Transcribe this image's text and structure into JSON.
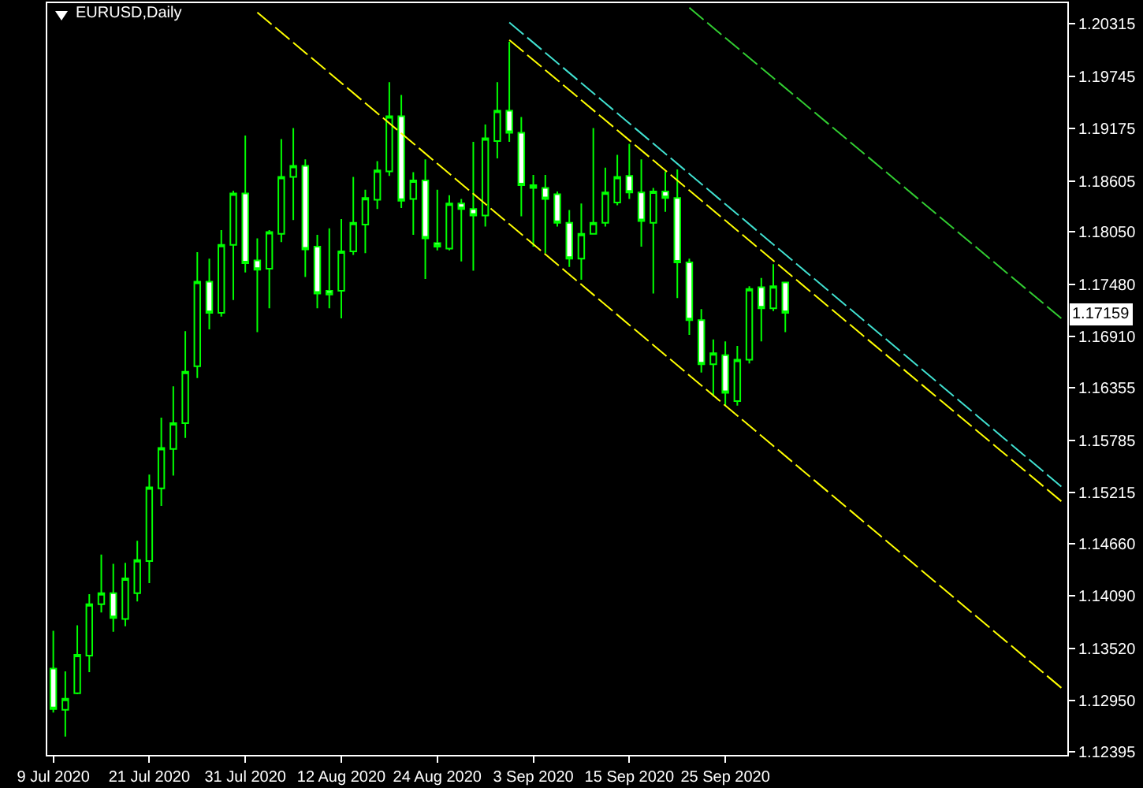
{
  "chart_data": {
    "type": "candlestick",
    "title": "EURUSD,Daily",
    "categories": [
      "9 Jul 2020",
      null,
      null,
      null,
      null,
      null,
      null,
      null,
      "21 Jul 2020",
      null,
      null,
      null,
      null,
      null,
      null,
      null,
      "31 Jul 2020",
      null,
      null,
      null,
      null,
      null,
      null,
      null,
      "12 Aug 2020",
      null,
      null,
      null,
      null,
      null,
      null,
      null,
      "24 Aug 2020",
      null,
      null,
      null,
      null,
      null,
      null,
      null,
      "3 Sep 2020",
      null,
      null,
      null,
      null,
      null,
      null,
      null,
      "15 Sep 2020",
      null,
      null,
      null,
      null,
      null,
      null,
      null,
      "25 Sep 2020",
      null,
      null,
      null,
      null,
      null,
      null,
      null,
      null,
      null,
      null,
      null,
      null,
      null,
      null,
      null,
      null,
      null,
      null,
      null,
      null,
      null,
      null,
      null,
      null,
      null,
      null,
      null,
      null
    ],
    "ohlc": [
      [
        1.133,
        1.1371,
        1.1282,
        1.1286
      ],
      [
        1.1285,
        1.1327,
        1.1256,
        1.1297
      ],
      [
        1.1303,
        1.1377,
        1.1302,
        1.1345
      ],
      [
        1.1344,
        1.1411,
        1.1326,
        1.14
      ],
      [
        1.14,
        1.1454,
        1.1391,
        1.1412
      ],
      [
        1.1412,
        1.1444,
        1.137,
        1.1385
      ],
      [
        1.1384,
        1.1445,
        1.1376,
        1.1428
      ],
      [
        1.1412,
        1.1469,
        1.1403,
        1.1448
      ],
      [
        1.1447,
        1.1541,
        1.1423,
        1.1527
      ],
      [
        1.1526,
        1.1603,
        1.1507,
        1.157
      ],
      [
        1.1569,
        1.1637,
        1.154,
        1.1597
      ],
      [
        1.1597,
        1.1697,
        1.1581,
        1.1653
      ],
      [
        1.1659,
        1.1783,
        1.1646,
        1.1751
      ],
      [
        1.1751,
        1.1776,
        1.1699,
        1.1717
      ],
      [
        1.1717,
        1.1807,
        1.1713,
        1.1791
      ],
      [
        1.1791,
        1.185,
        1.1731,
        1.1847
      ],
      [
        1.1847,
        1.191,
        1.1761,
        1.1771
      ],
      [
        1.1774,
        1.1798,
        1.1696,
        1.1764
      ],
      [
        1.1765,
        1.1807,
        1.1722,
        1.1805
      ],
      [
        1.1803,
        1.1906,
        1.1794,
        1.1865
      ],
      [
        1.1865,
        1.1918,
        1.1818,
        1.1877
      ],
      [
        1.1877,
        1.1884,
        1.1756,
        1.1786
      ],
      [
        1.1789,
        1.1802,
        1.1722,
        1.1738
      ],
      [
        1.1741,
        1.1809,
        1.1722,
        1.1737
      ],
      [
        1.1741,
        1.1819,
        1.1711,
        1.1784
      ],
      [
        1.1784,
        1.1865,
        1.178,
        1.1815
      ],
      [
        1.1813,
        1.1851,
        1.1782,
        1.1842
      ],
      [
        1.184,
        1.1882,
        1.183,
        1.1872
      ],
      [
        1.1871,
        1.1968,
        1.1866,
        1.1931
      ],
      [
        1.1931,
        1.1954,
        1.1831,
        1.1839
      ],
      [
        1.1841,
        1.187,
        1.1802,
        1.1861
      ],
      [
        1.1861,
        1.1884,
        1.1754,
        1.1798
      ],
      [
        1.1793,
        1.1851,
        1.1785,
        1.1789
      ],
      [
        1.1787,
        1.1845,
        1.1785,
        1.1836
      ],
      [
        1.1836,
        1.1841,
        1.1773,
        1.183
      ],
      [
        1.183,
        1.1903,
        1.1763,
        1.1823
      ],
      [
        1.1823,
        1.1922,
        1.1811,
        1.1907
      ],
      [
        1.1904,
        1.1968,
        1.1885,
        1.1937
      ],
      [
        1.1937,
        1.2012,
        1.1903,
        1.1913
      ],
      [
        1.1913,
        1.193,
        1.1822,
        1.1856
      ],
      [
        1.1856,
        1.1867,
        1.1789,
        1.1853
      ],
      [
        1.1853,
        1.1867,
        1.1782,
        1.1841
      ],
      [
        1.1846,
        1.1849,
        1.1811,
        1.1815
      ],
      [
        1.1815,
        1.1829,
        1.1767,
        1.1776
      ],
      [
        1.1776,
        1.1836,
        1.1753,
        1.1803
      ],
      [
        1.1803,
        1.1918,
        1.1803,
        1.1815
      ],
      [
        1.1815,
        1.1875,
        1.1811,
        1.1848
      ],
      [
        1.1837,
        1.1889,
        1.1834,
        1.1865
      ],
      [
        1.1866,
        1.1901,
        1.1841,
        1.1848
      ],
      [
        1.1848,
        1.1884,
        1.1789,
        1.1817
      ],
      [
        1.1815,
        1.1853,
        1.1738,
        1.1849
      ],
      [
        1.1849,
        1.1871,
        1.1827,
        1.1842
      ],
      [
        1.1842,
        1.1873,
        1.1733,
        1.1772
      ],
      [
        1.1772,
        1.1776,
        1.1693,
        1.1709
      ],
      [
        1.1709,
        1.1721,
        1.1652,
        1.1661
      ],
      [
        1.1661,
        1.1688,
        1.1626,
        1.1673
      ],
      [
        1.1671,
        1.1686,
        1.1616,
        1.163
      ],
      [
        1.1621,
        1.1681,
        1.1616,
        1.1666
      ],
      [
        1.1666,
        1.1746,
        1.1662,
        1.1743
      ],
      [
        1.1745,
        1.1755,
        1.1686,
        1.1722
      ],
      [
        1.1722,
        1.177,
        1.1719,
        1.1746
      ],
      [
        1.175,
        1.175,
        1.1696,
        1.1717
      ],
      null,
      null,
      null,
      null,
      null,
      null,
      null,
      null,
      null,
      null,
      null,
      null,
      null,
      null,
      null,
      null,
      null,
      null,
      null,
      null,
      null,
      null,
      null
    ],
    "series": [
      {
        "type": "line",
        "color": "#ffff00",
        "values": [
          null,
          null,
          null,
          null,
          null,
          null,
          null,
          null,
          null,
          null,
          null,
          null,
          null,
          null,
          null,
          null,
          null,
          1.2044,
          null,
          null,
          null,
          null,
          null,
          null,
          null,
          null,
          null,
          null,
          null,
          null,
          null,
          null,
          null,
          null,
          null,
          null,
          null,
          null,
          null,
          null,
          null,
          null,
          null,
          null,
          null,
          null,
          null,
          null,
          null,
          null,
          null,
          null,
          null,
          null,
          null,
          null,
          null,
          null,
          null,
          null,
          null,
          null,
          null,
          null,
          null,
          null,
          null,
          null,
          null,
          null,
          null,
          null,
          null,
          null,
          null,
          null,
          null,
          null,
          null,
          null,
          null,
          null,
          null,
          null,
          1.1309
        ]
      },
      {
        "type": "line",
        "color": "#ffff00",
        "values": [
          null,
          null,
          null,
          null,
          null,
          null,
          null,
          null,
          null,
          null,
          null,
          null,
          null,
          null,
          null,
          null,
          null,
          null,
          null,
          null,
          null,
          null,
          null,
          null,
          null,
          null,
          null,
          null,
          null,
          null,
          null,
          null,
          null,
          null,
          null,
          null,
          null,
          null,
          1.2014,
          null,
          null,
          null,
          null,
          null,
          null,
          null,
          null,
          null,
          null,
          null,
          null,
          null,
          null,
          null,
          null,
          null,
          null,
          null,
          null,
          null,
          null,
          null,
          null,
          null,
          null,
          null,
          null,
          null,
          null,
          null,
          null,
          null,
          null,
          null,
          null,
          null,
          null,
          null,
          null,
          null,
          null,
          null,
          null,
          null,
          1.1512
        ]
      },
      {
        "type": "line",
        "color": "#40e0d0",
        "values": [
          null,
          null,
          null,
          null,
          null,
          null,
          null,
          null,
          null,
          null,
          null,
          null,
          null,
          null,
          null,
          null,
          null,
          null,
          null,
          null,
          null,
          null,
          null,
          null,
          null,
          null,
          null,
          null,
          null,
          null,
          null,
          null,
          null,
          null,
          null,
          null,
          null,
          null,
          1.2033,
          null,
          null,
          null,
          null,
          null,
          null,
          null,
          null,
          null,
          null,
          null,
          null,
          null,
          null,
          null,
          null,
          null,
          null,
          null,
          null,
          null,
          null,
          null,
          null,
          null,
          null,
          null,
          null,
          null,
          null,
          null,
          null,
          null,
          null,
          null,
          null,
          null,
          null,
          null,
          null,
          null,
          null,
          null,
          null,
          null,
          1.1528
        ]
      },
      {
        "type": "line",
        "color": "#32cd32",
        "values": [
          null,
          null,
          null,
          null,
          null,
          null,
          null,
          null,
          null,
          null,
          null,
          null,
          null,
          null,
          null,
          null,
          null,
          null,
          null,
          null,
          null,
          null,
          null,
          null,
          null,
          null,
          null,
          null,
          null,
          null,
          null,
          null,
          null,
          null,
          null,
          null,
          null,
          null,
          null,
          null,
          null,
          null,
          null,
          null,
          null,
          null,
          null,
          null,
          null,
          null,
          null,
          null,
          null,
          1.2049,
          null,
          null,
          null,
          null,
          null,
          null,
          null,
          null,
          null,
          null,
          null,
          null,
          null,
          null,
          null,
          null,
          null,
          null,
          null,
          null,
          null,
          null,
          null,
          null,
          null,
          null,
          null,
          null,
          null,
          null,
          1.1711
        ]
      }
    ],
    "line_style": "dashed",
    "ylim": [
      1.1236,
      1.2054
    ],
    "yticks": [
      1.20315,
      1.19745,
      1.19175,
      1.18605,
      {
        "value": 1.1805,
        "label": "1.18050"
      },
      {
        "value": 1.1748,
        "label": "1.17480"
      },
      {
        "value": 1.1691,
        "label": "1.16910"
      },
      1.16355,
      1.15785,
      1.15215,
      {
        "value": 1.1466,
        "label": "1.14660"
      },
      {
        "value": 1.1409,
        "label": "1.14090"
      },
      {
        "value": 1.1352,
        "label": "1.13520"
      },
      {
        "value": 1.1295,
        "label": "1.12950"
      },
      1.12395
    ],
    "annotations": [
      {
        "text": "1.17159",
        "y": 1.17159
      }
    ],
    "grid": false
  }
}
